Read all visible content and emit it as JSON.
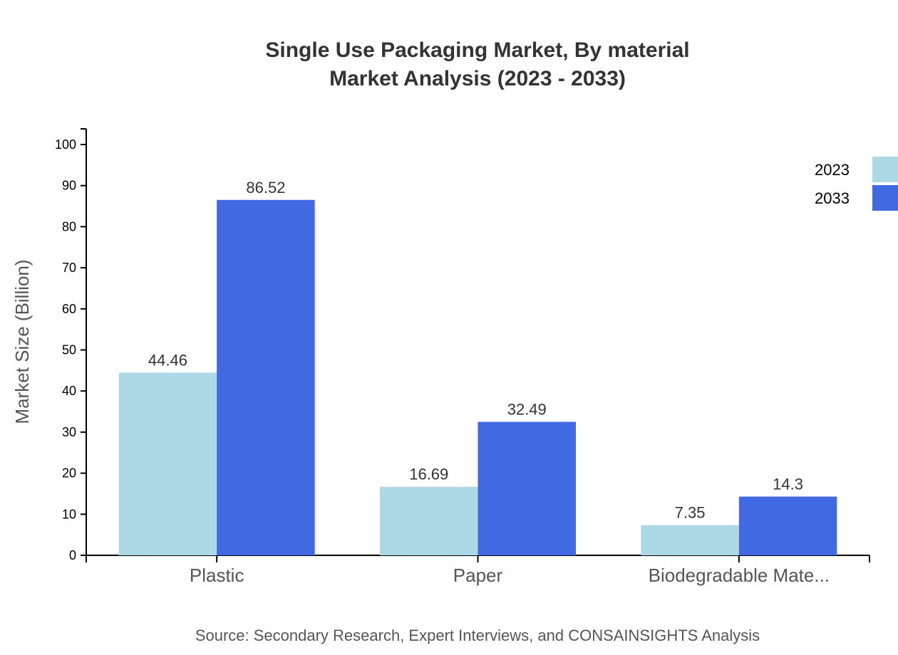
{
  "chart_data": {
    "type": "bar",
    "title": "Single Use Packaging Market, By material",
    "subtitle": "Market Analysis (2023 - 2033)",
    "xlabel": "",
    "ylabel": "Market Size (Billion)",
    "ylim": [
      0,
      100
    ],
    "yticks": [
      "0",
      "10",
      "20",
      "30",
      "40",
      "50",
      "60",
      "70",
      "80",
      "90",
      "100"
    ],
    "categories": [
      "Plastic",
      "Paper",
      "Biodegradable Mate..."
    ],
    "series": [
      {
        "name": "2023",
        "color": "#add8e6",
        "values": [
          44.46,
          16.69,
          7.35
        ],
        "labels": [
          "44.46",
          "16.69",
          "7.35"
        ]
      },
      {
        "name": "2033",
        "color": "#4169e1",
        "values": [
          86.52,
          32.49,
          14.3
        ],
        "labels": [
          "86.52",
          "32.49",
          "14.3"
        ]
      }
    ],
    "legend_position": "top-right",
    "grid": false,
    "source": "Source: Secondary Research, Expert Interviews, and CONSAINSIGHTS Analysis"
  }
}
